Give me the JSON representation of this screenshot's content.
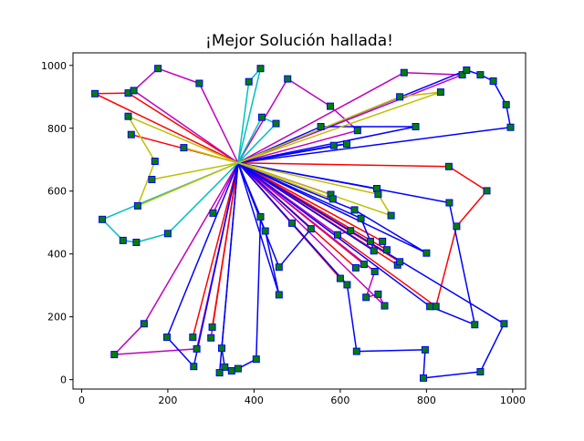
{
  "chart_data": {
    "type": "line",
    "title": "¡Mejor Solución hallada!",
    "xlabel": "",
    "ylabel": "",
    "xlim": [
      -20,
      1030
    ],
    "ylim": [
      -30,
      1040
    ],
    "xticks": [
      0,
      200,
      400,
      600,
      800,
      1000
    ],
    "yticks": [
      0,
      200,
      400,
      600,
      800,
      1000
    ],
    "xtick_labels": [
      "0",
      "200",
      "400",
      "600",
      "800",
      "1000"
    ],
    "ytick_labels": [
      "0",
      "200",
      "400",
      "600",
      "800",
      "1000"
    ],
    "grid": false,
    "depot": [
      363,
      690
    ],
    "colors": {
      "red": "#ff0000",
      "magenta": "#bf00bf",
      "blue": "#0000ff",
      "cyan": "#00bfbf",
      "olive": "#bfbf00",
      "marker_fill": "#008000",
      "marker_edge": "#0000ff"
    },
    "series": [
      {
        "color": "red",
        "points": [
          [
            363,
            690
          ],
          [
            31,
            910
          ],
          [
            108,
            912
          ],
          [
            363,
            690
          ]
        ]
      },
      {
        "color": "red",
        "points": [
          [
            363,
            690
          ],
          [
            115,
            780
          ],
          [
            363,
            690
          ]
        ]
      },
      {
        "color": "red",
        "points": [
          [
            363,
            690
          ],
          [
            852,
            678
          ],
          [
            940,
            601
          ],
          [
            870,
            488
          ],
          [
            822,
            233
          ],
          [
            363,
            690
          ]
        ]
      },
      {
        "color": "red",
        "points": [
          [
            363,
            690
          ],
          [
            488,
            498
          ],
          [
            363,
            690
          ]
        ]
      },
      {
        "color": "red",
        "points": [
          [
            363,
            690
          ],
          [
            258,
            135
          ],
          [
            363,
            690
          ]
        ]
      },
      {
        "color": "red",
        "points": [
          [
            363,
            690
          ],
          [
            303,
            167
          ],
          [
            363,
            690
          ]
        ]
      },
      {
        "color": "red",
        "points": [
          [
            363,
            690
          ],
          [
            300,
            133
          ],
          [
            363,
            690
          ]
        ]
      },
      {
        "color": "red",
        "points": [
          [
            363,
            690
          ],
          [
            600,
            322
          ],
          [
            616,
            302
          ],
          [
            363,
            690
          ]
        ]
      },
      {
        "color": "red",
        "points": [
          [
            363,
            690
          ],
          [
            636,
            356
          ],
          [
            655,
            367
          ],
          [
            363,
            690
          ]
        ]
      },
      {
        "color": "red",
        "points": [
          [
            363,
            690
          ],
          [
            698,
            440
          ],
          [
            708,
            413
          ],
          [
            363,
            690
          ]
        ]
      },
      {
        "color": "red",
        "points": [
          [
            363,
            690
          ],
          [
            733,
            365
          ],
          [
            738,
            375
          ],
          [
            363,
            690
          ]
        ]
      },
      {
        "color": "magenta",
        "points": [
          [
            363,
            690
          ],
          [
            121,
            920
          ],
          [
            177,
            990
          ],
          [
            273,
            943
          ],
          [
            363,
            690
          ]
        ]
      },
      {
        "color": "magenta",
        "points": [
          [
            363,
            690
          ],
          [
            478,
            957
          ],
          [
            577,
            870
          ],
          [
            640,
            793
          ],
          [
            363,
            690
          ]
        ]
      },
      {
        "color": "magenta",
        "points": [
          [
            363,
            690
          ],
          [
            748,
            977
          ],
          [
            883,
            970
          ],
          [
            363,
            690
          ]
        ]
      },
      {
        "color": "magenta",
        "points": [
          [
            363,
            690
          ],
          [
            305,
            530
          ],
          [
            363,
            690
          ]
        ]
      },
      {
        "color": "magenta",
        "points": [
          [
            363,
            690
          ],
          [
            145,
            178
          ],
          [
            76,
            80
          ],
          [
            267,
            98
          ],
          [
            363,
            690
          ]
        ]
      },
      {
        "color": "magenta",
        "points": [
          [
            363,
            690
          ],
          [
            578,
            589
          ],
          [
            363,
            690
          ]
        ]
      },
      {
        "color": "magenta",
        "points": [
          [
            363,
            690
          ],
          [
            594,
            461
          ],
          [
            624,
            474
          ],
          [
            363,
            690
          ]
        ]
      },
      {
        "color": "magenta",
        "points": [
          [
            363,
            690
          ],
          [
            680,
            344
          ],
          [
            660,
            262
          ],
          [
            688,
            272
          ],
          [
            703,
            235
          ],
          [
            363,
            690
          ]
        ]
      },
      {
        "color": "blue",
        "points": [
          [
            363,
            690
          ],
          [
            893,
            985
          ],
          [
            925,
            970
          ],
          [
            955,
            950
          ],
          [
            985,
            875
          ],
          [
            995,
            803
          ],
          [
            363,
            690
          ]
        ]
      },
      {
        "color": "blue",
        "points": [
          [
            363,
            690
          ],
          [
            555,
            805
          ],
          [
            775,
            805
          ],
          [
            363,
            690
          ]
        ]
      },
      {
        "color": "blue",
        "points": [
          [
            363,
            690
          ],
          [
            585,
            745
          ],
          [
            615,
            750
          ],
          [
            363,
            690
          ]
        ]
      },
      {
        "color": "blue",
        "points": [
          [
            363,
            690
          ],
          [
            685,
            608
          ],
          [
            363,
            690
          ]
        ]
      },
      {
        "color": "blue",
        "points": [
          [
            363,
            690
          ],
          [
            853,
            563
          ],
          [
            912,
            175
          ],
          [
            808,
            233
          ],
          [
            363,
            690
          ]
        ]
      },
      {
        "color": "blue",
        "points": [
          [
            363,
            690
          ],
          [
            648,
            513
          ],
          [
            670,
            440
          ],
          [
            678,
            410
          ],
          [
            363,
            690
          ]
        ]
      },
      {
        "color": "blue",
        "points": [
          [
            363,
            690
          ],
          [
            633,
            540
          ],
          [
            800,
            403
          ],
          [
            363,
            690
          ]
        ]
      },
      {
        "color": "blue",
        "points": [
          [
            363,
            690
          ],
          [
            426,
            473
          ],
          [
            458,
            270
          ],
          [
            363,
            690
          ]
        ]
      },
      {
        "color": "blue",
        "points": [
          [
            363,
            690
          ],
          [
            458,
            358
          ],
          [
            532,
            480
          ],
          [
            363,
            690
          ]
        ]
      },
      {
        "color": "blue",
        "points": [
          [
            363,
            690
          ],
          [
            198,
            135
          ],
          [
            260,
            42
          ],
          [
            363,
            690
          ]
        ]
      },
      {
        "color": "blue",
        "points": [
          [
            363,
            690
          ],
          [
            325,
            100
          ],
          [
            332,
            40
          ],
          [
            348,
            28
          ],
          [
            363,
            35
          ],
          [
            405,
            65
          ],
          [
            415,
            518
          ],
          [
            363,
            690
          ]
        ]
      },
      {
        "color": "blue",
        "points": [
          [
            363,
            690
          ],
          [
            320,
            22
          ],
          [
            363,
            690
          ]
        ]
      },
      {
        "color": "blue",
        "points": [
          [
            363,
            690
          ],
          [
            616,
            302
          ],
          [
            638,
            90
          ],
          [
            797,
            95
          ],
          [
            793,
            5
          ],
          [
            925,
            25
          ],
          [
            980,
            178
          ],
          [
            363,
            690
          ]
        ]
      },
      {
        "color": "cyan",
        "points": [
          [
            363,
            690
          ],
          [
            388,
            948
          ],
          [
            415,
            990
          ],
          [
            363,
            690
          ]
        ]
      },
      {
        "color": "cyan",
        "points": [
          [
            363,
            690
          ],
          [
            418,
            835
          ],
          [
            451,
            815
          ],
          [
            363,
            690
          ]
        ]
      },
      {
        "color": "cyan",
        "points": [
          [
            363,
            690
          ],
          [
            48,
            510
          ],
          [
            96,
            443
          ],
          [
            127,
            437
          ],
          [
            200,
            465
          ],
          [
            363,
            690
          ]
        ]
      },
      {
        "color": "olive",
        "points": [
          [
            363,
            690
          ],
          [
            738,
            900
          ],
          [
            833,
            915
          ],
          [
            363,
            690
          ]
        ]
      },
      {
        "color": "olive",
        "points": [
          [
            363,
            690
          ],
          [
            108,
            838
          ],
          [
            170,
            695
          ],
          [
            130,
            553
          ],
          [
            363,
            690
          ]
        ]
      },
      {
        "color": "olive",
        "points": [
          [
            363,
            690
          ],
          [
            237,
            738
          ],
          [
            363,
            690
          ]
        ]
      },
      {
        "color": "olive",
        "points": [
          [
            363,
            690
          ],
          [
            163,
            637
          ],
          [
            363,
            690
          ]
        ]
      },
      {
        "color": "olive",
        "points": [
          [
            363,
            690
          ],
          [
            688,
            590
          ],
          [
            718,
            522
          ],
          [
            363,
            690
          ]
        ]
      },
      {
        "color": "olive",
        "points": [
          [
            363,
            690
          ],
          [
            583,
            575
          ],
          [
            363,
            690
          ]
        ]
      }
    ]
  }
}
